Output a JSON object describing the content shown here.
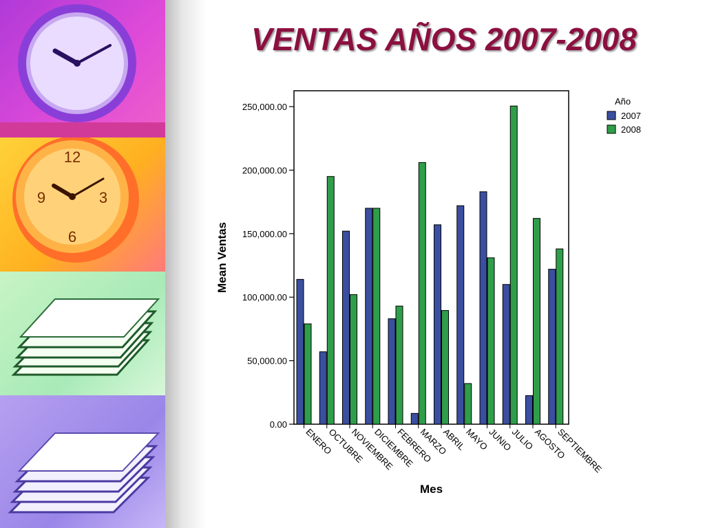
{
  "slide": {
    "title": "VENTAS AÑOS 2007-2008"
  },
  "decor": {
    "images": [
      "purple-clock",
      "orange-clock",
      "green-papers",
      "violet-papers"
    ]
  },
  "chart_data": {
    "type": "bar",
    "categories": [
      "ENERO",
      "OCTUBRE",
      "NOVIEMBRE",
      "DICIEMBRE",
      "FEBRERO",
      "MARZO",
      "ABRIL",
      "MAYO",
      "JUNIO",
      "JULIO",
      "AGOSTO",
      "SEPTIEMBRE"
    ],
    "series": [
      {
        "name": "2007",
        "color": "#3b4fa0",
        "values": [
          114000,
          57000,
          152000,
          170000,
          83000,
          8500,
          157000,
          172000,
          183000,
          110000,
          22500,
          122000
        ]
      },
      {
        "name": "2008",
        "color": "#2f9e4a",
        "values": [
          79000,
          195000,
          102000,
          170000,
          93000,
          206000,
          89500,
          32000,
          131000,
          250500,
          162000,
          138000
        ]
      }
    ],
    "xlabel": "Mes",
    "ylabel": "Mean Ventas",
    "ylim": [
      0,
      262500
    ],
    "yticks": [
      0,
      50000,
      100000,
      150000,
      200000,
      250000
    ],
    "ytick_labels": [
      "0.00",
      "50,000.00",
      "100,000.00",
      "150,000.00",
      "200,000.00",
      "250,000.00"
    ],
    "legend_title": "Año",
    "legend_position": "right",
    "grid": false
  }
}
